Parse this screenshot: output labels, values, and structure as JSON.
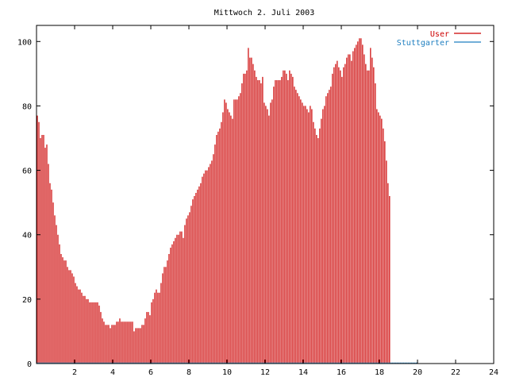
{
  "chart_data": {
    "type": "bar",
    "title": "Mittwoch 2. Juli 2003",
    "xlabel": "",
    "ylabel": "",
    "xlim": [
      0,
      24
    ],
    "ylim": [
      0,
      105
    ],
    "x_ticks": [
      2,
      4,
      6,
      8,
      10,
      12,
      14,
      16,
      18,
      20,
      22,
      24
    ],
    "y_ticks": [
      0,
      20,
      40,
      60,
      80,
      100
    ],
    "grid": false,
    "legend_position": "top-right",
    "colors": {
      "User": "#cc0000",
      "Stuttgarter": "#1f7fc0"
    },
    "series": [
      {
        "name": "User",
        "x_step": 0.0833,
        "values": [
          77,
          75,
          70,
          71,
          71,
          67,
          68,
          62,
          56,
          54,
          50,
          46,
          43,
          40,
          37,
          34,
          33,
          32,
          32,
          30,
          29,
          29,
          28,
          27,
          25,
          24,
          23,
          23,
          22,
          21,
          21,
          20,
          20,
          19,
          19,
          19,
          19,
          19,
          19,
          18,
          16,
          14,
          13,
          12,
          12,
          12,
          11,
          12,
          12,
          12,
          13,
          13,
          14,
          13,
          13,
          13,
          13,
          13,
          13,
          13,
          13,
          10,
          11,
          11,
          11,
          11,
          12,
          12,
          14,
          16,
          16,
          15,
          19,
          20,
          22,
          23,
          22,
          22,
          25,
          28,
          30,
          30,
          32,
          34,
          36,
          37,
          38,
          39,
          40,
          40,
          41,
          41,
          39,
          43,
          45,
          46,
          47,
          49,
          51,
          52,
          53,
          54,
          55,
          56,
          58,
          59,
          60,
          60,
          61,
          62,
          63,
          65,
          68,
          71,
          72,
          73,
          75,
          78,
          82,
          81,
          79,
          78,
          77,
          76,
          82,
          82,
          82,
          83,
          84,
          87,
          90,
          90,
          91,
          98,
          95,
          95,
          93,
          91,
          89,
          88,
          88,
          87,
          89,
          81,
          80,
          79,
          77,
          81,
          82,
          86,
          88,
          88,
          88,
          88,
          89,
          91,
          91,
          90,
          88,
          91,
          90,
          89,
          86,
          85,
          84,
          83,
          82,
          81,
          80,
          80,
          79,
          78,
          80,
          79,
          75,
          73,
          71,
          70,
          73,
          76,
          79,
          80,
          83,
          84,
          85,
          86,
          90,
          92,
          93,
          94,
          92,
          91,
          89,
          92,
          93,
          95,
          96,
          96,
          94,
          97,
          98,
          99,
          100,
          101,
          101,
          99,
          96,
          93,
          91,
          91,
          98,
          95,
          92,
          87,
          79,
          78,
          77,
          76,
          73,
          69,
          63,
          56,
          52
        ]
      },
      {
        "name": "Stuttgarter",
        "x_step": 0.0833,
        "values": [
          0,
          0,
          0,
          0,
          0,
          0,
          0,
          0,
          0,
          0,
          0,
          0,
          0,
          0,
          0,
          0,
          0,
          0,
          0,
          0,
          0,
          0,
          0,
          0,
          0,
          0,
          0,
          0,
          0,
          0,
          0,
          0,
          0,
          0,
          0,
          0,
          0,
          0,
          0,
          0,
          0,
          0,
          0,
          0,
          0,
          0,
          0,
          0,
          0,
          0,
          0,
          0,
          0,
          0,
          0,
          0,
          0,
          0,
          0,
          0,
          0,
          0,
          0,
          0,
          0,
          0,
          0,
          0,
          0,
          0,
          0,
          0,
          0,
          0,
          0,
          0,
          0,
          0,
          0,
          0,
          0,
          0,
          0,
          0,
          0,
          0,
          0,
          0,
          0,
          0,
          0,
          0,
          0,
          0,
          0,
          0,
          0,
          0,
          0,
          0,
          0,
          0,
          0,
          0,
          0,
          0,
          0,
          0,
          0,
          0,
          0,
          0,
          0,
          0,
          0,
          0,
          0,
          0,
          0,
          0,
          0,
          0,
          0,
          0,
          0,
          0,
          0,
          0,
          0,
          0,
          0,
          0,
          0,
          0,
          0,
          0,
          0,
          0,
          0,
          0,
          0,
          0,
          0,
          0,
          0,
          0,
          0,
          0,
          0,
          0,
          0,
          0,
          0,
          0,
          0,
          0,
          0,
          0,
          0,
          0,
          0,
          0,
          0,
          0,
          0,
          0,
          0,
          0,
          0,
          0,
          0,
          0,
          0,
          0,
          0,
          0,
          0,
          0,
          0,
          0,
          0,
          0,
          0,
          0,
          0,
          0,
          0,
          0,
          0,
          0,
          0,
          0,
          0,
          0,
          0,
          0,
          0,
          0,
          0,
          0,
          0,
          0,
          0,
          0,
          0,
          0,
          0,
          0,
          0,
          0,
          0,
          0,
          0,
          0,
          0,
          0,
          0,
          0,
          0,
          0,
          0,
          0,
          0,
          0,
          0,
          0,
          0,
          0,
          0,
          0,
          0,
          0,
          0,
          0,
          0,
          0,
          0,
          0,
          0,
          0
        ]
      }
    ]
  }
}
